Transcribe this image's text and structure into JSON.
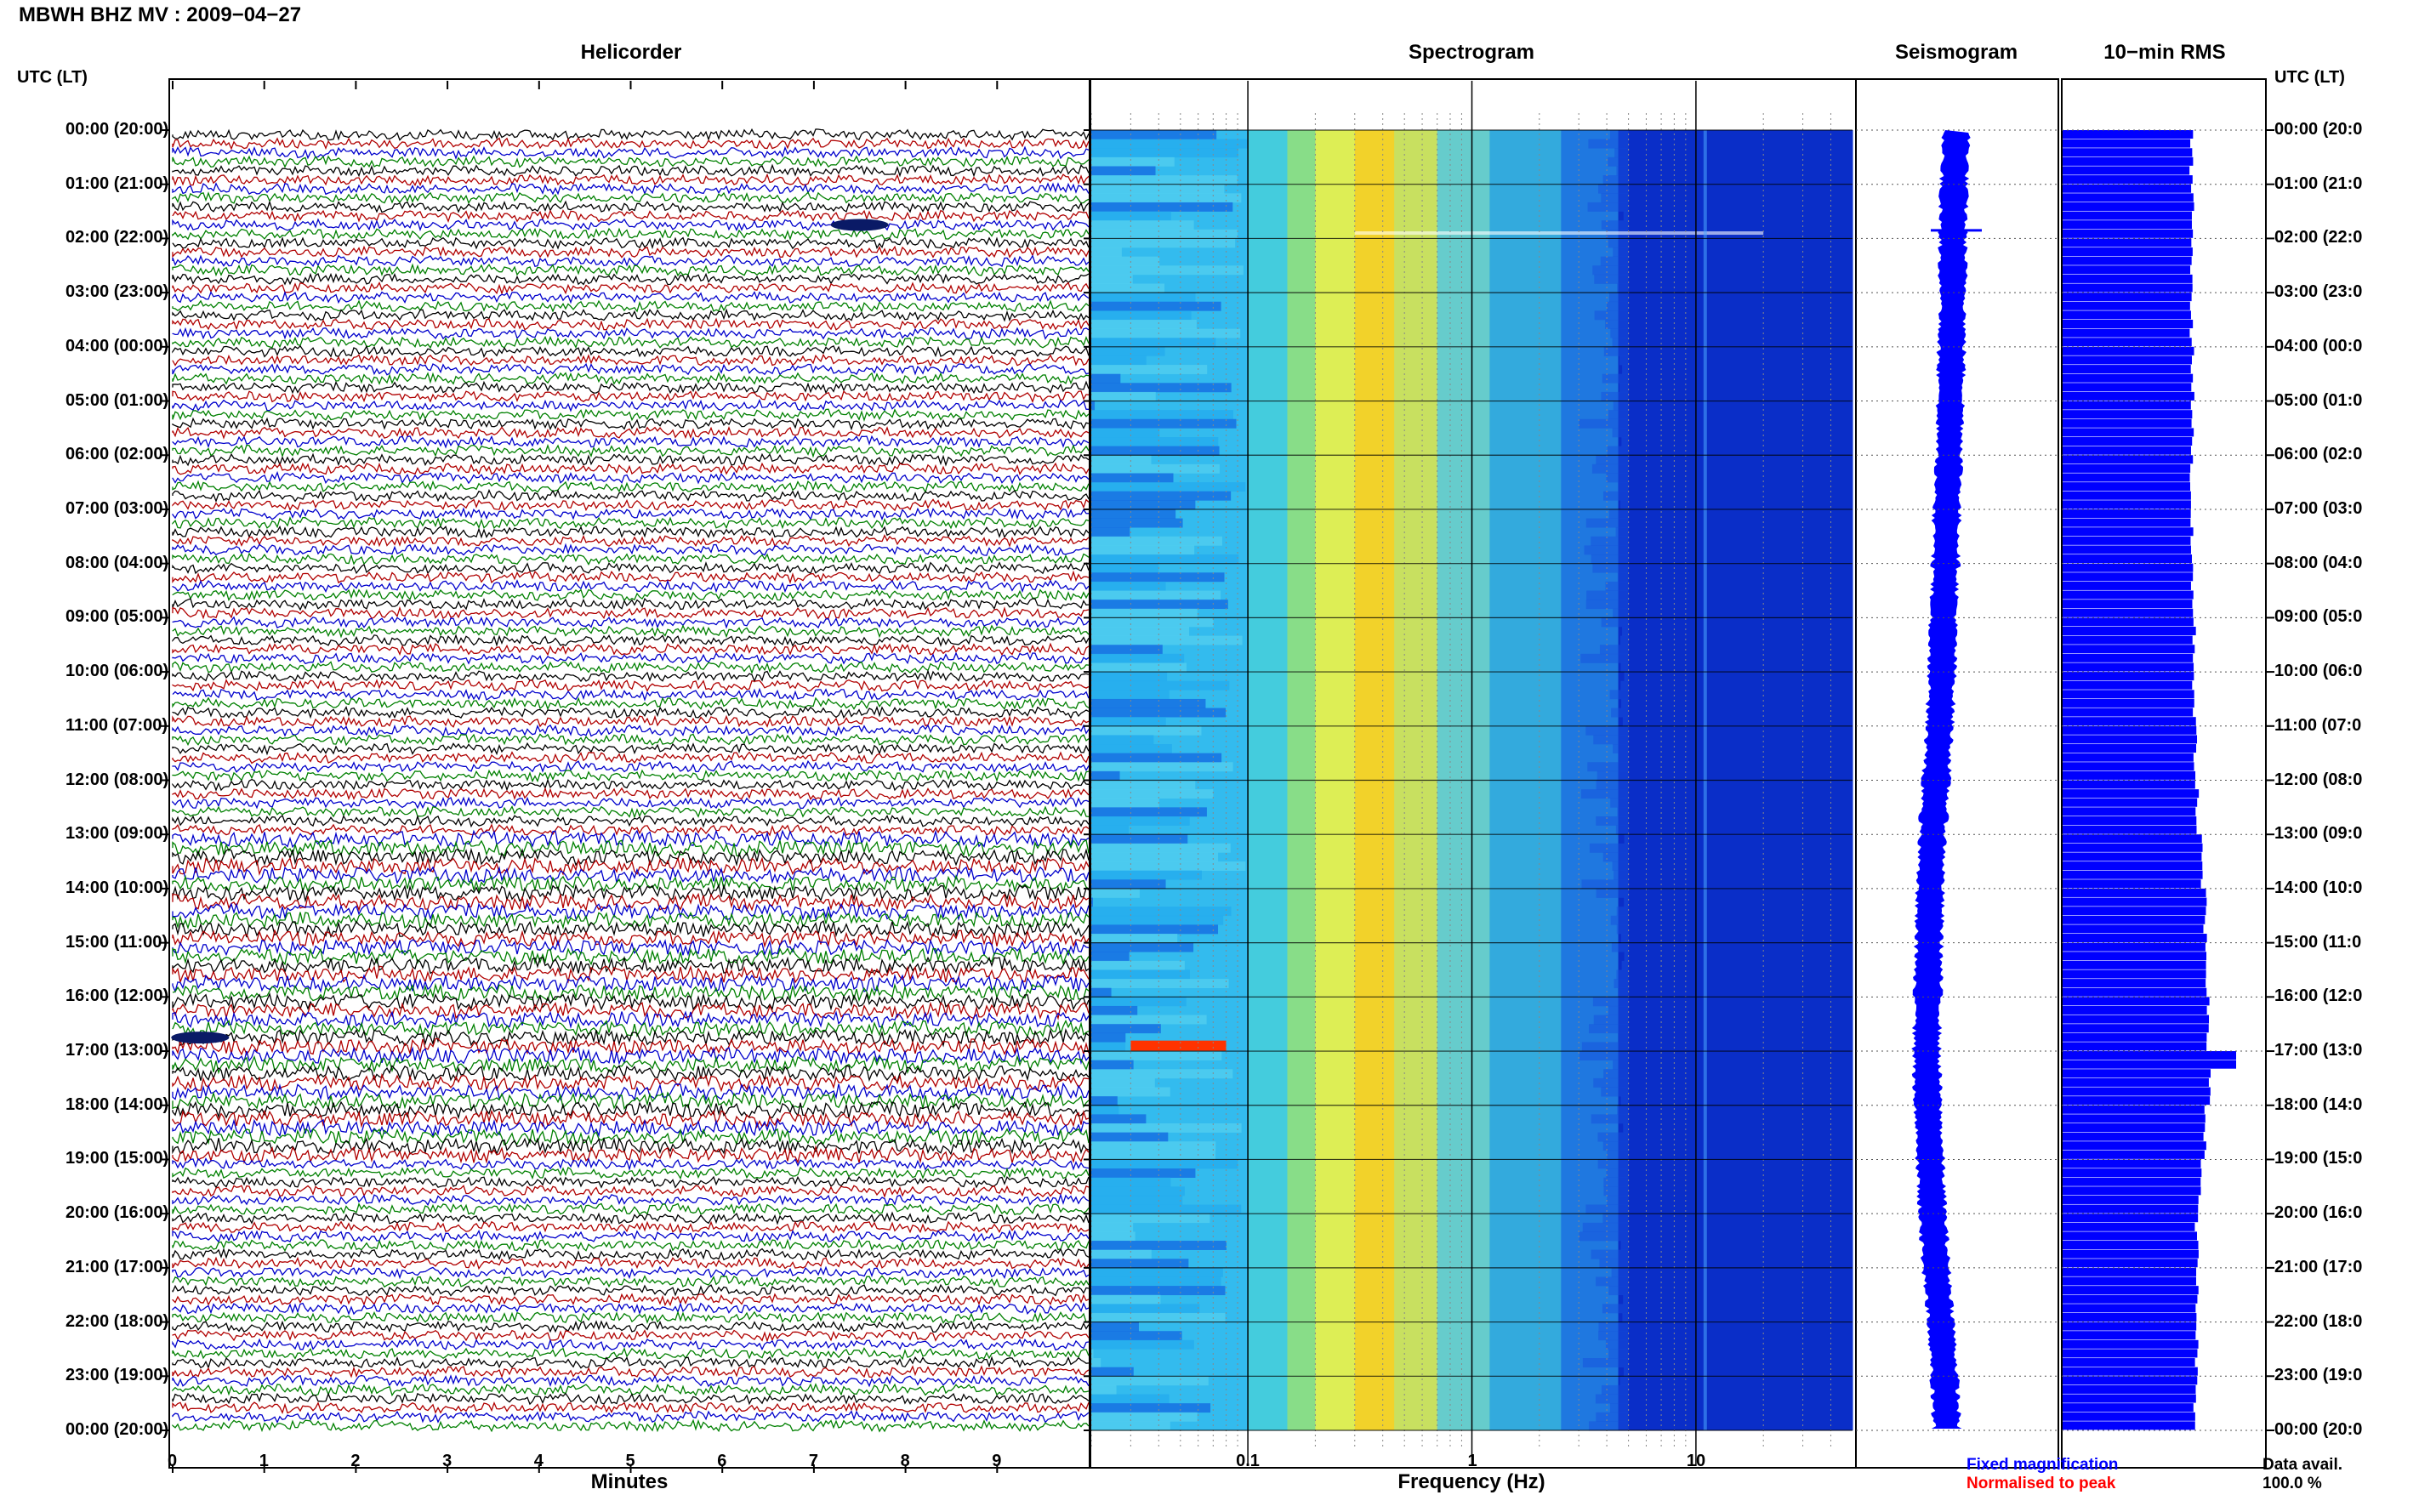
{
  "header": {
    "station": "MBWH BHZ MV : 2009−04−27"
  },
  "panels": {
    "helicorder": "Helicorder",
    "spectrogram": "Spectrogram",
    "seismogram": "Seismogram",
    "rms": "10−min RMS"
  },
  "time_axis": {
    "left_title": "UTC (LT)",
    "right_title": "UTC (LT)",
    "rows": [
      "00:00 (20:00)",
      "01:00 (21:00)",
      "02:00 (22:00)",
      "03:00 (23:00)",
      "04:00 (00:00)",
      "05:00 (01:00)",
      "06:00 (02:00)",
      "07:00 (03:00)",
      "08:00 (04:00)",
      "09:00 (05:00)",
      "10:00 (06:00)",
      "11:00 (07:00)",
      "12:00 (08:00)",
      "13:00 (09:00)",
      "14:00 (10:00)",
      "15:00 (11:00)",
      "16:00 (12:00)",
      "17:00 (13:00)",
      "18:00 (14:00)",
      "19:00 (15:00)",
      "20:00 (16:00)",
      "21:00 (17:00)",
      "22:00 (18:00)",
      "23:00 (19:00)",
      "00:00 (20:00)"
    ],
    "right_rows": [
      "00:00 (20:0",
      "01:00 (21:0",
      "02:00 (22:0",
      "03:00 (23:0",
      "04:00 (00:0",
      "05:00 (01:0",
      "06:00 (02:0",
      "07:00 (03:0",
      "08:00 (04:0",
      "09:00 (05:0",
      "10:00 (06:0",
      "11:00 (07:0",
      "12:00 (08:0",
      "13:00 (09:0",
      "14:00 (10:0",
      "15:00 (11:0",
      "16:00 (12:0",
      "17:00 (13:0",
      "18:00 (14:0",
      "19:00 (15:0",
      "20:00 (16:0",
      "21:00 (17:0",
      "22:00 (18:0",
      "23:00 (19:0",
      "00:00 (20:0"
    ]
  },
  "footer": {
    "minutes_label": "Minutes",
    "frequency_label": "Frequency (Hz)",
    "legend_fixed": "Fixed magnification",
    "legend_normalised": "Normalised to peak",
    "data_avail_label": "Data avail.",
    "data_avail_value": "100.0 %"
  },
  "colors": {
    "trace_cycle": [
      "#000000",
      "#b00000",
      "#0000cc",
      "#008000"
    ],
    "seismogram": "#0000ff",
    "rms": "#0000ff",
    "legend_fixed": "#0000ff",
    "legend_normalised": "#ff0000",
    "spectrogram_scale": [
      "#0000cc",
      "#0066ff",
      "#00ccff",
      "#88ee88",
      "#ffff00",
      "#ff8800",
      "#ff0000"
    ]
  },
  "chart_data": [
    {
      "type": "line",
      "title": "Helicorder",
      "xlabel": "Minutes",
      "ylabel": "UTC (LT)",
      "xlim": [
        0,
        10
      ],
      "x_ticks": [
        0,
        1,
        2,
        3,
        4,
        5,
        6,
        7,
        8,
        9
      ],
      "rows_per_hour": 6,
      "hours": 24,
      "events": [
        {
          "hour": 1,
          "row": 4,
          "minute": 7.5,
          "note": "small event"
        },
        {
          "hour": 16,
          "row": 4,
          "minute": 0.3,
          "note": "low-frequency disturbance"
        }
      ]
    },
    {
      "type": "heatmap",
      "title": "Spectrogram",
      "xlabel": "Frequency (Hz)",
      "ylabel": "UTC (LT)",
      "x_scale": "log",
      "xlim": [
        0.02,
        50
      ],
      "x_ticks": [
        0.1,
        1,
        10
      ],
      "rows": 144,
      "peak_band_hz": [
        0.2,
        0.6
      ],
      "features": [
        {
          "hour_index": 1.9,
          "type": "horizontal streak",
          "freq_range": [
            0.3,
            20
          ]
        },
        {
          "hour_index": 16.9,
          "type": "hot spot",
          "freq_range": [
            0.03,
            0.08
          ]
        },
        {
          "type": "persistent line",
          "freq": 11
        }
      ]
    },
    {
      "type": "line",
      "title": "Seismogram",
      "orientation": "vertical",
      "hours": 24,
      "envelope_offset": [
        0,
        0.2,
        0.3,
        0.3,
        0.4,
        0.5,
        0.6,
        0.8,
        0.9,
        1.1,
        1.2,
        1.4,
        1.7,
        2.0,
        2.2,
        2.3,
        2.4,
        2.5,
        2.4,
        2.2,
        2.0,
        1.7,
        1.3,
        1.0,
        0.8
      ],
      "spike_hour": 1.85
    },
    {
      "type": "bar",
      "title": "10−min RMS",
      "orientation": "horizontal",
      "bins": 144,
      "hourly_mean_rel": [
        0.68,
        0.69,
        0.68,
        0.68,
        0.69,
        0.69,
        0.68,
        0.68,
        0.69,
        0.7,
        0.7,
        0.71,
        0.72,
        0.75,
        0.78,
        0.79,
        0.8,
        0.82,
        0.78,
        0.74,
        0.72,
        0.72,
        0.72,
        0.71
      ],
      "peak_hour": 17.1
    }
  ]
}
